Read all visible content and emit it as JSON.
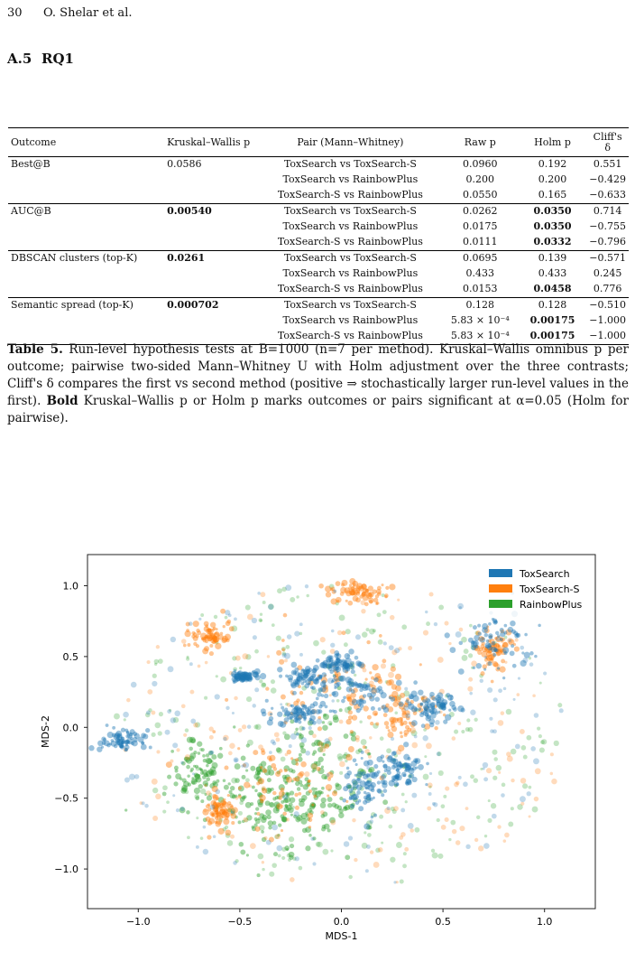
{
  "header": {
    "page_number": "30",
    "running_title": "O. Shelar et al."
  },
  "section": {
    "number": "A.5",
    "title": "RQ1"
  },
  "table": {
    "headers": [
      "Outcome",
      "Kruskal–Wallis p",
      "Pair (Mann–Whitney)",
      "Raw p",
      "Holm p",
      "Cliff's δ"
    ],
    "groups": [
      {
        "outcome": "Best@B",
        "kw": "0.0586",
        "kw_bold": false,
        "rows": [
          {
            "pair": "ToxSearch vs ToxSearch-S",
            "raw": "0.0960",
            "holm": "0.192",
            "holm_bold": false,
            "delta": "0.551"
          },
          {
            "pair": "ToxSearch vs RainbowPlus",
            "raw": "0.200",
            "holm": "0.200",
            "holm_bold": false,
            "delta": "−0.429"
          },
          {
            "pair": "ToxSearch-S vs RainbowPlus",
            "raw": "0.0550",
            "holm": "0.165",
            "holm_bold": false,
            "delta": "−0.633"
          }
        ]
      },
      {
        "outcome": "AUC@B",
        "kw": "0.00540",
        "kw_bold": true,
        "rows": [
          {
            "pair": "ToxSearch vs ToxSearch-S",
            "raw": "0.0262",
            "holm": "0.0350",
            "holm_bold": true,
            "delta": "0.714"
          },
          {
            "pair": "ToxSearch vs RainbowPlus",
            "raw": "0.0175",
            "holm": "0.0350",
            "holm_bold": true,
            "delta": "−0.755"
          },
          {
            "pair": "ToxSearch-S vs RainbowPlus",
            "raw": "0.0111",
            "holm": "0.0332",
            "holm_bold": true,
            "delta": "−0.796"
          }
        ]
      },
      {
        "outcome": "DBSCAN clusters (top-K)",
        "kw": "0.0261",
        "kw_bold": true,
        "rows": [
          {
            "pair": "ToxSearch vs ToxSearch-S",
            "raw": "0.0695",
            "holm": "0.139",
            "holm_bold": false,
            "delta": "−0.571"
          },
          {
            "pair": "ToxSearch vs RainbowPlus",
            "raw": "0.433",
            "holm": "0.433",
            "holm_bold": false,
            "delta": "0.245"
          },
          {
            "pair": "ToxSearch-S vs RainbowPlus",
            "raw": "0.0153",
            "holm": "0.0458",
            "holm_bold": true,
            "delta": "0.776"
          }
        ]
      },
      {
        "outcome": "Semantic spread (top-K)",
        "kw": "0.000702",
        "kw_bold": true,
        "rows": [
          {
            "pair": "ToxSearch vs ToxSearch-S",
            "raw": "0.128",
            "holm": "0.128",
            "holm_bold": false,
            "delta": "−0.510"
          },
          {
            "pair": "ToxSearch vs RainbowPlus",
            "raw": "5.83 × 10⁻⁴",
            "holm": "0.00175",
            "holm_bold": true,
            "delta": "−1.000"
          },
          {
            "pair": "ToxSearch-S vs RainbowPlus",
            "raw": "5.83 × 10⁻⁴",
            "holm": "0.00175",
            "holm_bold": true,
            "delta": "−1.000"
          }
        ]
      }
    ]
  },
  "caption": {
    "label": "Table 5.",
    "text_1": " Run-level hypothesis tests at B=1000 (n=7 per method). Kruskal–Wallis omnibus p per outcome; pairwise two-sided Mann–Whitney U with Holm adjustment over the three contrasts; Cliff's δ compares the first vs second method (positive ⇒ stochastically larger run-level values in the first). ",
    "bold_word": "Bold",
    "text_2": " Kruskal–Wallis p or Holm p marks outcomes or pairs significant at α=0.05 (Holm for pairwise)."
  },
  "chart_data": {
    "type": "scatter",
    "xlabel": "MDS-1",
    "ylabel": "MDS-2",
    "xlim": [
      -1.25,
      1.25
    ],
    "ylim": [
      -1.28,
      1.22
    ],
    "xticks": [
      "−1.0",
      "−0.5",
      "0.0",
      "0.5",
      "1.0"
    ],
    "xtick_values": [
      -1.0,
      -0.5,
      0.0,
      0.5,
      1.0
    ],
    "yticks": [
      "1.0",
      "0.5",
      "0.0",
      "−0.5",
      "−1.0"
    ],
    "ytick_values": [
      1.0,
      0.5,
      0.0,
      -0.5,
      -1.0
    ],
    "legend_position": "top-right",
    "series": [
      {
        "name": "ToxSearch",
        "color": "#1f77b4",
        "clusters": [
          [
            -1.08,
            -0.1,
            0.05,
            0.04
          ],
          [
            -0.48,
            0.36,
            0.03,
            0.02
          ],
          [
            0.0,
            0.45,
            0.05,
            0.03
          ],
          [
            0.08,
            0.22,
            0.12,
            0.08
          ],
          [
            -0.15,
            0.35,
            0.08,
            0.05
          ],
          [
            0.45,
            0.15,
            0.06,
            0.05
          ],
          [
            0.12,
            -0.42,
            0.05,
            0.1
          ],
          [
            0.75,
            0.6,
            0.09,
            0.12
          ],
          [
            -0.2,
            0.1,
            0.08,
            0.05
          ],
          [
            0.3,
            -0.3,
            0.05,
            0.05
          ]
        ]
      },
      {
        "name": "ToxSearch-S",
        "color": "#ff7f0e",
        "clusters": [
          [
            0.08,
            0.95,
            0.08,
            0.04
          ],
          [
            0.75,
            0.55,
            0.05,
            0.07
          ],
          [
            0.0,
            0.3,
            0.18,
            0.14
          ],
          [
            -0.25,
            -0.4,
            0.18,
            0.15
          ],
          [
            -0.6,
            -0.6,
            0.04,
            0.06
          ],
          [
            0.3,
            0.1,
            0.1,
            0.1
          ],
          [
            -0.65,
            0.65,
            0.05,
            0.05
          ]
        ]
      },
      {
        "name": "RainbowPlus",
        "color": "#2ca02c",
        "clusters": [
          [
            -0.45,
            -0.4,
            0.18,
            0.12
          ],
          [
            -0.35,
            -0.65,
            0.15,
            0.15
          ],
          [
            -0.72,
            -0.3,
            0.06,
            0.1
          ],
          [
            -0.1,
            -0.2,
            0.15,
            0.2
          ],
          [
            -0.2,
            -0.5,
            0.2,
            0.2
          ]
        ]
      }
    ]
  }
}
